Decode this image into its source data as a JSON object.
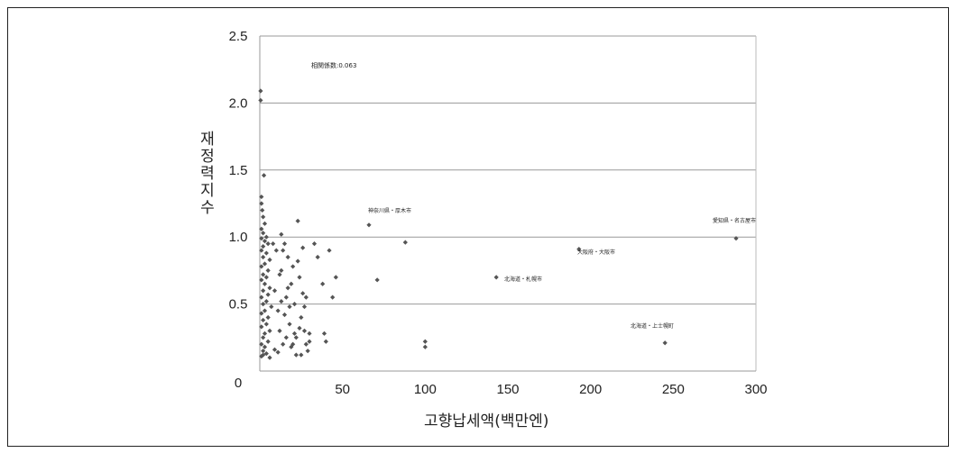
{
  "chart_data": {
    "type": "scatter",
    "xlabel": "고향납세액(백만엔)",
    "ylabel": "재정력지수",
    "xlim": [
      0,
      300
    ],
    "ylim": [
      0,
      2.5
    ],
    "x_ticks": [
      50,
      100,
      150,
      200,
      250,
      300
    ],
    "y_ticks": [
      "0",
      "0.5",
      "1.0",
      "1.5",
      "2.0",
      "2.5"
    ],
    "grid": "horizontal",
    "marker_color": "#555555",
    "correlation_label": "相関係数:0.063",
    "annotations": [
      {
        "text": "神奈川県・厚木市",
        "x": 66,
        "y": 1.09
      },
      {
        "text": "北海道・札幌市",
        "x": 143,
        "y": 0.7
      },
      {
        "text": "大阪府・大阪市",
        "x": 193,
        "y": 0.91
      },
      {
        "text": "愛知県・名古屋市",
        "x": 288,
        "y": 0.99
      },
      {
        "text": "北海道・上士幌町",
        "x": 245,
        "y": 0.21
      }
    ],
    "points": [
      [
        0.5,
        2.09
      ],
      [
        0.5,
        2.02
      ],
      [
        2.5,
        1.46
      ],
      [
        1,
        1.3
      ],
      [
        1,
        1.25
      ],
      [
        1.5,
        1.2
      ],
      [
        2,
        1.15
      ],
      [
        3,
        1.1
      ],
      [
        1,
        1.06
      ],
      [
        2,
        1.03
      ],
      [
        4,
        1.0
      ],
      [
        1,
        0.99
      ],
      [
        3,
        0.97
      ],
      [
        5,
        0.95
      ],
      [
        2,
        0.93
      ],
      [
        1,
        0.9
      ],
      [
        4,
        0.88
      ],
      [
        2,
        0.85
      ],
      [
        6,
        0.83
      ],
      [
        3,
        0.8
      ],
      [
        1,
        0.78
      ],
      [
        5,
        0.75
      ],
      [
        2,
        0.72
      ],
      [
        4,
        0.7
      ],
      [
        1,
        0.68
      ],
      [
        3,
        0.65
      ],
      [
        6,
        0.62
      ],
      [
        2,
        0.6
      ],
      [
        5,
        0.57
      ],
      [
        1,
        0.55
      ],
      [
        4,
        0.52
      ],
      [
        2,
        0.5
      ],
      [
        7,
        0.48
      ],
      [
        3,
        0.45
      ],
      [
        1,
        0.43
      ],
      [
        5,
        0.4
      ],
      [
        2,
        0.38
      ],
      [
        4,
        0.35
      ],
      [
        1,
        0.33
      ],
      [
        6,
        0.3
      ],
      [
        3,
        0.28
      ],
      [
        2,
        0.25
      ],
      [
        5,
        0.22
      ],
      [
        1,
        0.2
      ],
      [
        3,
        0.18
      ],
      [
        2,
        0.15
      ],
      [
        4,
        0.13
      ],
      [
        1,
        0.11
      ],
      [
        6,
        0.1
      ],
      [
        2,
        0.12
      ],
      [
        8,
        0.95
      ],
      [
        9,
        0.6
      ],
      [
        10,
        0.9
      ],
      [
        11,
        0.45
      ],
      [
        12,
        0.3
      ],
      [
        13,
        1.02
      ],
      [
        13,
        0.75
      ],
      [
        14,
        0.2
      ],
      [
        15,
        0.95
      ],
      [
        16,
        0.55
      ],
      [
        17,
        0.85
      ],
      [
        18,
        0.35
      ],
      [
        19,
        0.65
      ],
      [
        20,
        0.2
      ],
      [
        21,
        0.5
      ],
      [
        22,
        0.25
      ],
      [
        23,
        1.12
      ],
      [
        24,
        0.7
      ],
      [
        25,
        0.4
      ],
      [
        26,
        0.92
      ],
      [
        27,
        0.3
      ],
      [
        28,
        0.55
      ],
      [
        29,
        0.15
      ],
      [
        30,
        0.28
      ],
      [
        33,
        0.95
      ],
      [
        35,
        0.85
      ],
      [
        38,
        0.65
      ],
      [
        39,
        0.28
      ],
      [
        40,
        0.22
      ],
      [
        42,
        0.9
      ],
      [
        44,
        0.55
      ],
      [
        46,
        0.7
      ],
      [
        9,
        0.16
      ],
      [
        11,
        0.14
      ],
      [
        13,
        0.52
      ],
      [
        15,
        0.42
      ],
      [
        17,
        0.62
      ],
      [
        19,
        0.18
      ],
      [
        21,
        0.28
      ],
      [
        23,
        0.82
      ],
      [
        25,
        0.12
      ],
      [
        27,
        0.48
      ],
      [
        12,
        0.72
      ],
      [
        14,
        0.9
      ],
      [
        16,
        0.25
      ],
      [
        18,
        0.48
      ],
      [
        20,
        0.78
      ],
      [
        22,
        0.12
      ],
      [
        24,
        0.32
      ],
      [
        26,
        0.58
      ],
      [
        28,
        0.2
      ],
      [
        30,
        0.22
      ],
      [
        66,
        1.09
      ],
      [
        71,
        0.68
      ],
      [
        88,
        0.96
      ],
      [
        100,
        0.22
      ],
      [
        100,
        0.18
      ],
      [
        143,
        0.7
      ],
      [
        193,
        0.91
      ],
      [
        245,
        0.21
      ],
      [
        288,
        0.99
      ]
    ]
  }
}
